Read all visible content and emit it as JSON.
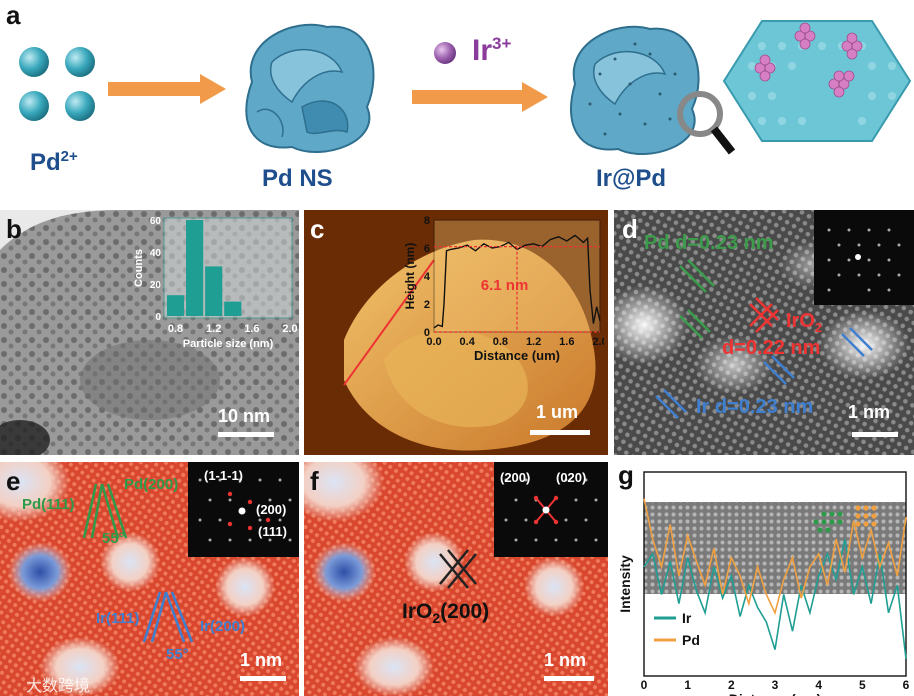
{
  "panel_a": {
    "letter": "a",
    "pd_ion": "Pd",
    "pd_ion_sup": "2+",
    "ns_label": "Pd NS",
    "ir_ion": "Ir",
    "ir_ion_sup": "3+",
    "product_label": "Ir@Pd",
    "colors": {
      "sphere": "#3aa9bd",
      "sheet": "#5fa8c8",
      "arrow": "#f09a4a",
      "ir_sphere": "#a064b0",
      "text": "#1f4e8c",
      "cluster": "#d67fc4"
    }
  },
  "panel_b": {
    "letter": "b",
    "scale_label": "10 nm",
    "inset_chart": {
      "type": "bar",
      "categories": [
        "0.8",
        "1.0",
        "1.2",
        "1.4",
        "1.6",
        "1.8"
      ],
      "values": [
        13,
        60,
        31,
        9,
        0,
        0
      ],
      "xticks": [
        "0.8",
        "1.2",
        "1.6",
        "2.0"
      ],
      "yticks": [
        "0",
        "20",
        "40",
        "60"
      ],
      "xlabel": "Particle size (nm)",
      "ylabel": "Counts",
      "ylim": [
        0,
        60
      ],
      "color": "#1f9e93"
    }
  },
  "panel_c": {
    "letter": "c",
    "scale_label": "1 um",
    "chart_data": {
      "type": "line",
      "xlabel": "Distance (um)",
      "ylabel": "Height (nm)",
      "xlim": [
        0,
        2.0
      ],
      "ylim": [
        0,
        8
      ],
      "xticks": [
        "0.0",
        "0.4",
        "0.8",
        "1.2",
        "1.6",
        "2.0"
      ],
      "yticks": [
        "0",
        "2",
        "4",
        "6",
        "8"
      ],
      "annotation": "6.1 nm",
      "x": [
        0.0,
        0.05,
        0.1,
        0.12,
        0.15,
        0.2,
        0.3,
        0.4,
        0.5,
        0.6,
        0.7,
        0.8,
        0.9,
        1.0,
        1.1,
        1.2,
        1.3,
        1.4,
        1.5,
        1.6,
        1.7,
        1.8,
        1.85,
        1.88,
        1.92,
        1.96,
        2.0
      ],
      "y": [
        0.3,
        0.5,
        0.4,
        2.0,
        5.8,
        5.9,
        6.0,
        6.2,
        5.8,
        6.3,
        6.0,
        6.1,
        6.4,
        5.9,
        6.2,
        6.3,
        6.1,
        6.6,
        6.8,
        6.5,
        6.9,
        6.4,
        6.7,
        3.0,
        0.6,
        1.8,
        0.8
      ]
    }
  },
  "panel_d": {
    "letter": "d",
    "pd_label": "Pd d=0.23 nm",
    "iro2_label": "IrO",
    "iro2_sub": "2",
    "iro2_d": "d=0.22 nm",
    "ir_label": "Ir d=0.23 nm",
    "scale_label": "1 nm"
  },
  "panel_e": {
    "letter": "e",
    "pd111": "Pd(111)",
    "pd200": "Pd(200)",
    "angle_top": "55°",
    "ir111": "Ir(111)",
    "ir200": "Ir(200)",
    "angle_bottom": "55°",
    "inset_labels": [
      "(1-1-1)",
      "(200)",
      "(111)"
    ],
    "scale_label": "1 nm"
  },
  "panel_f": {
    "letter": "f",
    "inset_labels": [
      "(200)",
      "(020)"
    ],
    "iro2_label": "IrO",
    "iro2_sub": "2",
    "iro2_tail": "(200)",
    "scale_label": "1 nm"
  },
  "panel_g": {
    "letter": "g",
    "chart_data": {
      "type": "line",
      "xlabel": "Distance (nm)",
      "ylabel": "Intensity",
      "xlim": [
        0,
        6
      ],
      "xticks": [
        "0",
        "1",
        "2",
        "3",
        "4",
        "5",
        "6"
      ],
      "series": [
        {
          "name": "Ir",
          "color": "#1f9e93",
          "x": [
            0,
            0.2,
            0.4,
            0.6,
            0.8,
            1.0,
            1.2,
            1.4,
            1.6,
            1.8,
            2.0,
            2.2,
            2.4,
            2.6,
            2.8,
            3.0,
            3.2,
            3.4,
            3.6,
            3.8,
            4.0,
            4.2,
            4.4,
            4.6,
            4.8,
            5.0,
            5.2,
            5.4,
            5.6,
            5.8,
            6.0
          ],
          "y": [
            0.55,
            0.62,
            0.4,
            0.58,
            0.35,
            0.6,
            0.42,
            0.3,
            0.55,
            0.38,
            0.5,
            0.28,
            0.45,
            0.33,
            0.25,
            0.1,
            0.4,
            0.2,
            0.45,
            0.3,
            0.5,
            0.62,
            0.48,
            0.7,
            0.4,
            0.55,
            0.35,
            0.62,
            0.3,
            0.45,
            0.05
          ]
        },
        {
          "name": "Pd",
          "color": "#f0a040",
          "x": [
            0,
            0.2,
            0.4,
            0.6,
            0.8,
            1.0,
            1.2,
            1.4,
            1.6,
            1.8,
            2.0,
            2.2,
            2.4,
            2.6,
            2.8,
            3.0,
            3.2,
            3.4,
            3.6,
            3.8,
            4.0,
            4.2,
            4.4,
            4.6,
            4.8,
            5.0,
            5.2,
            5.4,
            5.6,
            5.8,
            6.0
          ],
          "y": [
            0.92,
            0.7,
            0.55,
            0.78,
            0.5,
            0.72,
            0.58,
            0.45,
            0.65,
            0.4,
            0.6,
            0.5,
            0.35,
            0.55,
            0.4,
            0.3,
            0.48,
            0.6,
            0.38,
            0.55,
            0.62,
            0.45,
            0.7,
            0.52,
            0.8,
            0.6,
            0.75,
            0.55,
            0.68,
            0.5,
            0.82
          ]
        }
      ]
    }
  },
  "watermark": "大数跨境"
}
